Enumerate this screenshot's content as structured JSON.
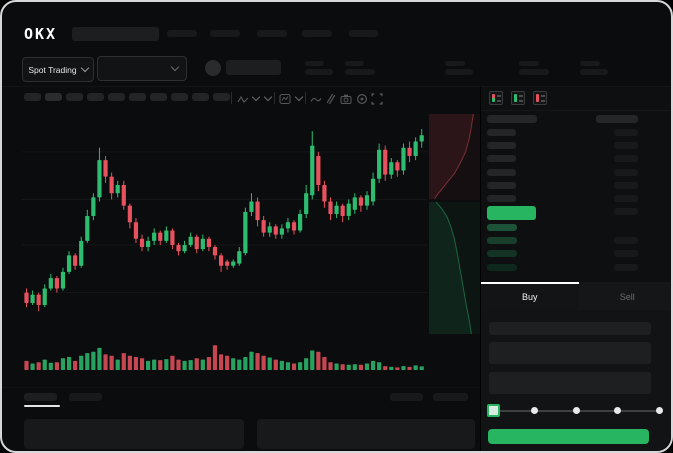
{
  "app": {
    "logo": "OKX"
  },
  "nav": {
    "skeleton_items": 5
  },
  "market_bar": {
    "market_type_label": "Spot Trading"
  },
  "toolbar": {
    "timeframe_slots": 10,
    "icons": [
      "candle-style-icon",
      "chevron-down-icon",
      "indicator-icon",
      "chevron-down-icon",
      "line-icon",
      "compare-icon",
      "camera-icon",
      "settings-icon",
      "fullscreen-icon"
    ]
  },
  "orderbook": {
    "view_modes": [
      "book-combined-icon",
      "book-bids-icon",
      "book-asks-icon"
    ],
    "ask_rows": 6,
    "bid_rows": 4,
    "bid_row_tints": [
      "#1c5237",
      "#173f2b",
      "#133325",
      "#0f281d"
    ],
    "bid_right_bars": [
      false,
      true,
      true,
      true
    ],
    "last_price_color": "#27b561"
  },
  "trade_panel": {
    "tabs": [
      {
        "label": "Buy",
        "active": true
      },
      {
        "label": "Sell",
        "active": false
      }
    ],
    "slider": {
      "stops": 5,
      "active_stop": 0
    },
    "submit_color": "#27b561"
  },
  "colors": {
    "up": "#2ebd70",
    "down": "#e8525f",
    "accent_green": "#27b561",
    "background": "#0b0c0d",
    "grid": "rgba(255,255,255,0.045)"
  },
  "chart_data": {
    "type": "candlestick",
    "note": "values are [open,close,low,high,volume] in percent of visible range",
    "candles": [
      [
        20,
        15,
        13,
        22,
        35
      ],
      [
        15,
        19,
        14,
        21,
        25
      ],
      [
        19,
        14,
        11,
        20,
        30
      ],
      [
        14,
        22,
        13,
        24,
        40
      ],
      [
        22,
        27,
        21,
        29,
        28
      ],
      [
        27,
        22,
        20,
        28,
        30
      ],
      [
        22,
        30,
        21,
        32,
        45
      ],
      [
        30,
        38,
        29,
        40,
        50
      ],
      [
        38,
        33,
        31,
        39,
        35
      ],
      [
        33,
        45,
        32,
        47,
        55
      ],
      [
        45,
        57,
        44,
        60,
        65
      ],
      [
        57,
        66,
        55,
        68,
        70
      ],
      [
        66,
        84,
        64,
        90,
        85
      ],
      [
        84,
        76,
        73,
        86,
        60
      ],
      [
        76,
        68,
        65,
        78,
        55
      ],
      [
        68,
        72,
        66,
        74,
        40
      ],
      [
        72,
        62,
        60,
        74,
        65
      ],
      [
        62,
        54,
        51,
        63,
        55
      ],
      [
        54,
        46,
        44,
        56,
        50
      ],
      [
        46,
        42,
        40,
        48,
        45
      ],
      [
        42,
        45,
        40,
        47,
        35
      ],
      [
        45,
        49,
        43,
        51,
        40
      ],
      [
        49,
        45,
        43,
        50,
        38
      ],
      [
        45,
        50,
        44,
        52,
        42
      ],
      [
        50,
        43,
        41,
        51,
        55
      ],
      [
        43,
        40,
        38,
        44,
        40
      ],
      [
        40,
        43,
        39,
        45,
        35
      ],
      [
        43,
        47,
        42,
        49,
        38
      ],
      [
        47,
        41,
        39,
        48,
        45
      ],
      [
        41,
        46,
        40,
        48,
        40
      ],
      [
        46,
        42,
        40,
        47,
        50
      ],
      [
        42,
        38,
        36,
        43,
        95
      ],
      [
        38,
        33,
        30,
        39,
        60
      ],
      [
        35,
        33,
        31,
        36,
        55
      ],
      [
        33,
        35,
        32,
        36,
        45
      ],
      [
        34,
        40,
        33,
        42,
        40
      ],
      [
        39,
        59,
        38,
        61,
        50
      ],
      [
        59,
        64,
        57,
        68,
        70
      ],
      [
        64,
        55,
        52,
        66,
        65
      ],
      [
        55,
        49,
        47,
        57,
        55
      ],
      [
        49,
        52,
        47,
        54,
        48
      ],
      [
        52,
        48,
        46,
        53,
        40
      ],
      [
        48,
        51,
        46,
        53,
        35
      ],
      [
        51,
        54,
        49,
        56,
        30
      ],
      [
        54,
        50,
        48,
        55,
        25
      ],
      [
        50,
        58,
        49,
        60,
        30
      ],
      [
        58,
        68,
        56,
        72,
        45
      ],
      [
        67,
        91,
        65,
        98,
        75
      ],
      [
        86,
        72,
        69,
        88,
        70
      ],
      [
        72,
        64,
        61,
        74,
        50
      ],
      [
        64,
        58,
        55,
        66,
        30
      ],
      [
        58,
        62,
        56,
        64,
        25
      ],
      [
        62,
        57,
        54,
        63,
        22
      ],
      [
        57,
        63,
        55,
        65,
        20
      ],
      [
        60,
        66,
        58,
        68,
        22
      ],
      [
        66,
        62,
        59,
        67,
        20
      ],
      [
        62,
        67,
        60,
        69,
        25
      ],
      [
        64,
        75,
        62,
        78,
        35
      ],
      [
        75,
        89,
        73,
        92,
        30
      ],
      [
        89,
        77,
        74,
        91,
        15
      ],
      [
        77,
        83,
        75,
        85,
        12
      ],
      [
        83,
        79,
        76,
        84,
        10
      ],
      [
        79,
        90,
        77,
        92,
        15
      ],
      [
        90,
        86,
        83,
        93,
        12
      ],
      [
        86,
        93,
        84,
        95,
        18
      ],
      [
        93,
        96,
        90,
        99,
        14
      ]
    ],
    "grid_levels": [
      88,
      65,
      43,
      20
    ],
    "depth": {
      "asks": [
        [
          0,
          0.87
        ],
        [
          0.06,
          0.83
        ],
        [
          0.12,
          0.78
        ],
        [
          0.17,
          0.72
        ],
        [
          0.22,
          0.62
        ],
        [
          0.27,
          0.5
        ],
        [
          0.31,
          0.36
        ],
        [
          0.345,
          0.24
        ],
        [
          0.37,
          0.15
        ],
        [
          0.385,
          0.11
        ]
      ],
      "bids": [
        [
          0.4,
          0.14
        ],
        [
          0.43,
          0.25
        ],
        [
          0.47,
          0.36
        ],
        [
          0.52,
          0.44
        ],
        [
          0.57,
          0.5
        ],
        [
          0.64,
          0.56
        ],
        [
          0.72,
          0.62
        ],
        [
          0.8,
          0.68
        ],
        [
          0.88,
          0.74
        ],
        [
          0.95,
          0.8
        ],
        [
          1,
          0.83
        ]
      ]
    }
  }
}
